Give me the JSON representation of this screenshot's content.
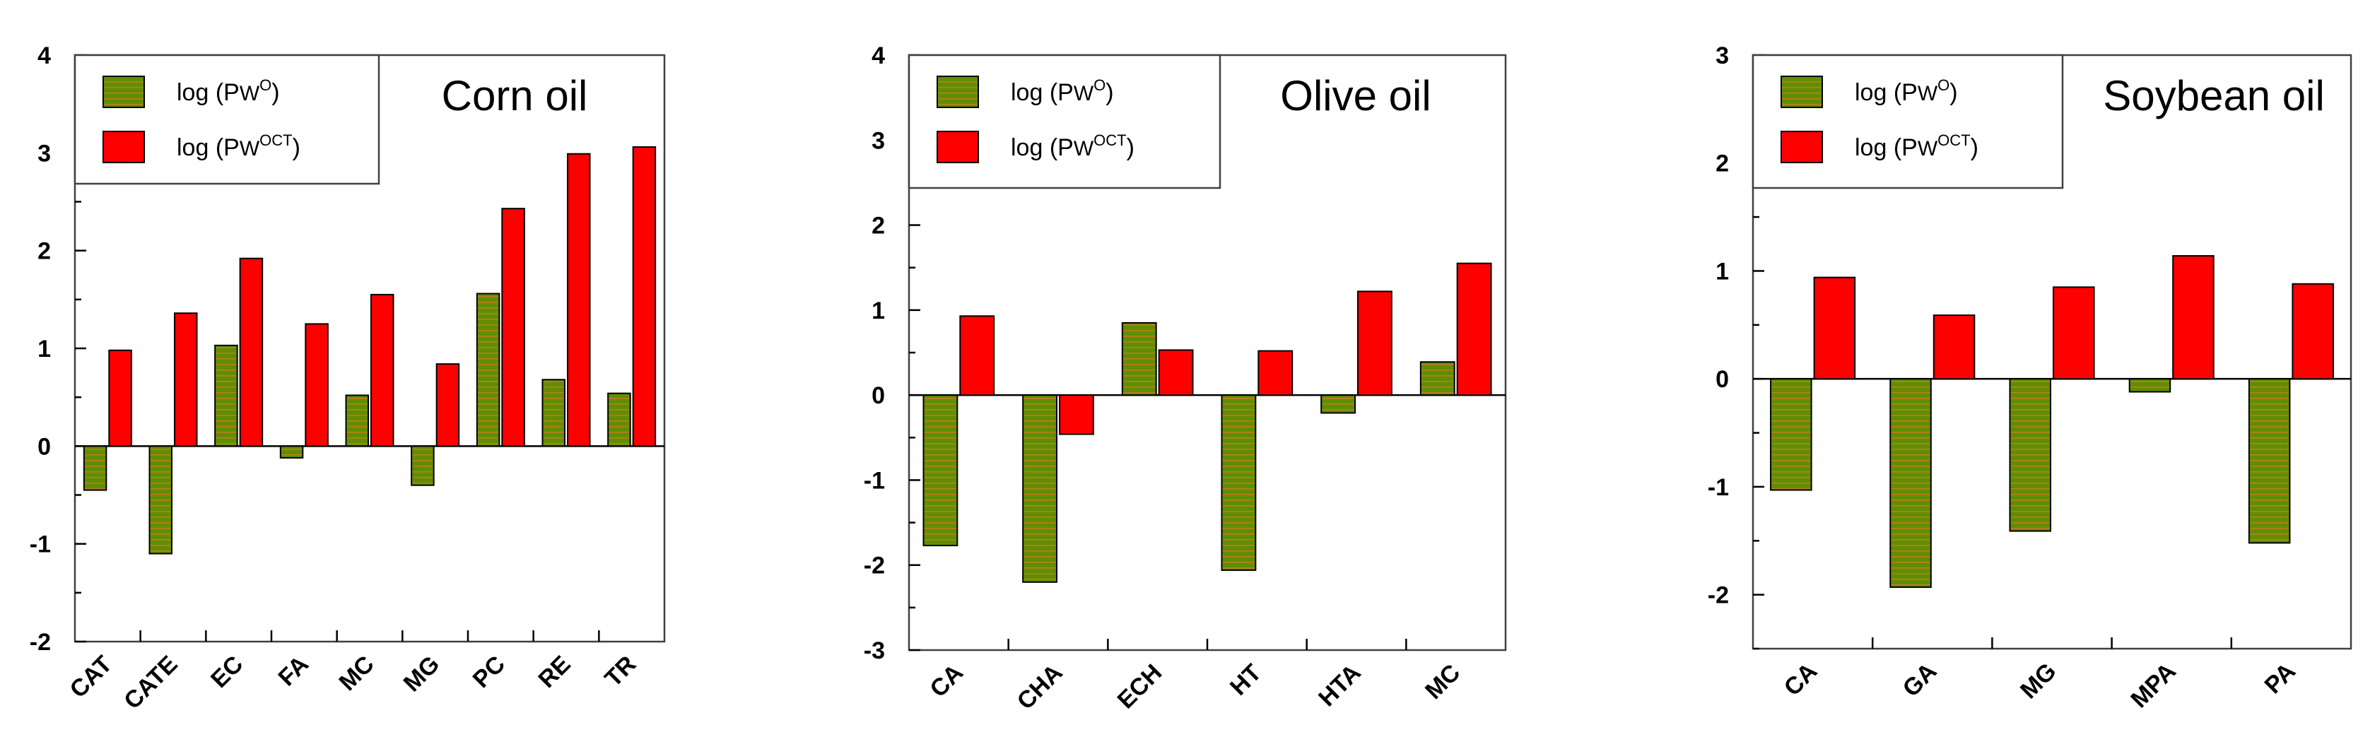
{
  "legend": {
    "series_o": {
      "prefix": "log (P",
      "sub": "W",
      "sup": "O",
      "suffix": ")"
    },
    "series_oct": {
      "prefix": "log (P",
      "sub": "W",
      "sup": "OCT",
      "suffix": ")"
    }
  },
  "colors": {
    "olive_green": "#5f8f00",
    "stripe": "#e0742a",
    "red": "#ff0000",
    "axis": "#000000",
    "frame": "#404040"
  },
  "chart_data": [
    {
      "type": "bar",
      "title": "Corn oil",
      "categories": [
        "CAT",
        "CATE",
        "EC",
        "FA",
        "MC",
        "MG",
        "PC",
        "RE",
        "TR"
      ],
      "series": [
        {
          "key": "o",
          "values": [
            -0.45,
            -1.1,
            1.03,
            -0.12,
            0.52,
            -0.4,
            1.56,
            0.68,
            0.54
          ]
        },
        {
          "key": "oct",
          "values": [
            0.98,
            1.36,
            1.92,
            1.25,
            1.55,
            0.84,
            2.43,
            2.99,
            3.06
          ]
        }
      ],
      "ylim": [
        -2,
        4
      ],
      "yticks": [
        -2,
        -1,
        0,
        1,
        2,
        3,
        4
      ],
      "legend_position": "top-left"
    },
    {
      "type": "bar",
      "title": "Olive oil",
      "categories": [
        "CA",
        "CHA",
        "ECH",
        "HT",
        "HTA",
        "MC"
      ],
      "series": [
        {
          "key": "o",
          "values": [
            -1.77,
            -2.2,
            0.85,
            -2.06,
            -0.21,
            0.39
          ]
        },
        {
          "key": "oct",
          "values": [
            0.93,
            -0.46,
            0.53,
            0.52,
            1.22,
            1.55
          ]
        }
      ],
      "ylim": [
        -3,
        4
      ],
      "yticks": [
        -3,
        -2,
        -1,
        0,
        1,
        2,
        3,
        4
      ],
      "legend_position": "top-left"
    },
    {
      "type": "bar",
      "title": "Soybean oil",
      "categories": [
        "CA",
        "GA",
        "MG",
        "MPA",
        "PA"
      ],
      "series": [
        {
          "key": "o",
          "values": [
            -1.03,
            -1.93,
            -1.41,
            -0.12,
            -1.52
          ]
        },
        {
          "key": "oct",
          "values": [
            0.94,
            0.59,
            0.85,
            1.14,
            0.88
          ]
        }
      ],
      "ylim": [
        -2.5,
        3
      ],
      "yticks": [
        -2,
        -1,
        0,
        1,
        2,
        3
      ],
      "legend_position": "top-left"
    }
  ]
}
